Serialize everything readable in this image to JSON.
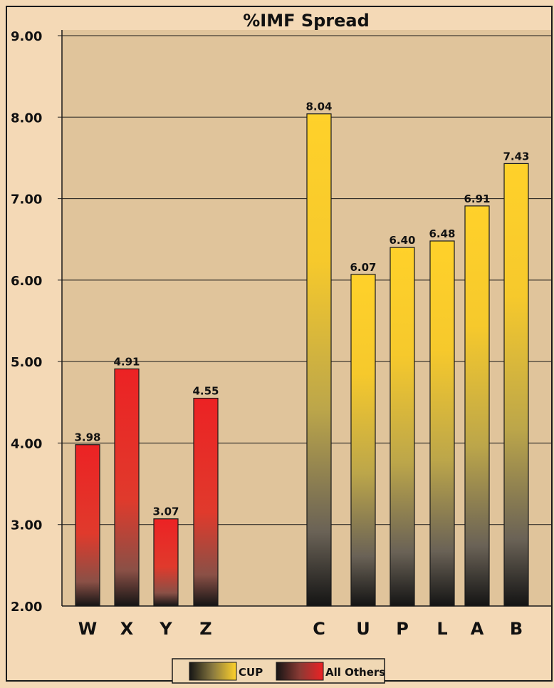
{
  "chart_data": {
    "type": "bar",
    "title": "%IMF Spread",
    "xlabel": "",
    "ylabel": "",
    "ylim": [
      2.0,
      9.0
    ],
    "ytick_step": 1.0,
    "yticks": [
      "2.00",
      "3.00",
      "4.00",
      "5.00",
      "6.00",
      "7.00",
      "8.00",
      "9.00"
    ],
    "grid": true,
    "legend_position": "bottom-center",
    "series": [
      {
        "name": "All Others",
        "color": "#e8262a",
        "categories": [
          "W",
          "X",
          "Y",
          "Z"
        ],
        "values": [
          3.98,
          4.91,
          3.07,
          4.55
        ],
        "labels": [
          "3.98",
          "4.91",
          "3.07",
          "4.55"
        ]
      },
      {
        "name": "CUP",
        "color": "#ffd22a",
        "categories": [
          "C",
          "U",
          "P",
          "L",
          "A",
          "B"
        ],
        "values": [
          8.04,
          6.07,
          6.4,
          6.48,
          6.91,
          7.43
        ],
        "labels": [
          "8.04",
          "6.07",
          "6.40",
          "6.48",
          "6.91",
          "7.43"
        ]
      }
    ],
    "legend": [
      {
        "name": "CUP",
        "color": "#ffd22a"
      },
      {
        "name": "All Others",
        "color": "#e8262a"
      }
    ]
  },
  "colors": {
    "page_background": "#f4d9b6",
    "plot_background": "#e0c49b",
    "bar_bottom": "#111111"
  }
}
